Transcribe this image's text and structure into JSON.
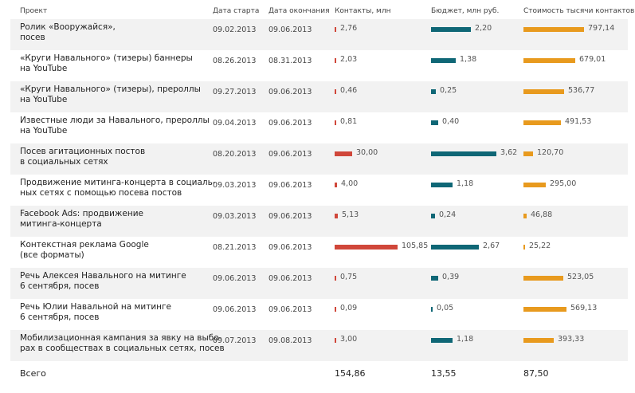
{
  "header": {
    "project": "Проект",
    "start": "Дата старта",
    "end": "Дата окончания",
    "contacts": "Контакты, млн",
    "budget": "Бюджет, млн руб.",
    "cost": "Стоимость тысячи контактов, руб.."
  },
  "colors": {
    "contacts": "#d0473a",
    "budget": "#0f6776",
    "cost": "#e89a1e",
    "shade": "#f2f2f2"
  },
  "rows": [
    {
      "line1": "Ролик «Вооружайся»,",
      "line2": "посев",
      "start": "09.02.2013",
      "end": "09.06.2013",
      "contacts": "2,76",
      "budget": "2,20",
      "cost": "797,14"
    },
    {
      "line1": "«Круги Навального» (тизеры) баннеры",
      "line2": "на YouTube",
      "start": "08.26.2013",
      "end": "08.31.2013",
      "contacts": "2,03",
      "budget": "1,38",
      "cost": "679,01"
    },
    {
      "line1": "«Круги Навального» (тизеры), прероллы",
      "line2": "на YouTube",
      "start": "09.27.2013",
      "end": "09.06.2013",
      "contacts": "0,46",
      "budget": "0,25",
      "cost": "536,77"
    },
    {
      "line1": "Известные люди за Навального, прероллы",
      "line2": "на YouTube",
      "start": "09.04.2013",
      "end": "09.06.2013",
      "contacts": "0,81",
      "budget": "0,40",
      "cost": "491,53"
    },
    {
      "line1": "Посев агитационных постов",
      "line2": "в социальных сетях",
      "start": "08.20.2013",
      "end": "09.06.2013",
      "contacts": "30,00",
      "budget": "3,62",
      "cost": "120,70"
    },
    {
      "line1": "Продвижение митинга-концерта в социаль-",
      "line2": "ных сетях с помощью посева постов",
      "start": "09.03.2013",
      "end": "09.06.2013",
      "contacts": "4,00",
      "budget": "1,18",
      "cost": "295,00"
    },
    {
      "line1": "Facebook Ads: продвижение",
      "line2": "митинга-концерта",
      "start": "09.03.2013",
      "end": "09.06.2013",
      "contacts": "5,13",
      "budget": "0,24",
      "cost": "46,88"
    },
    {
      "line1": "Контекстная реклама Google",
      "line2": "(все форматы)",
      "start": "08.21.2013",
      "end": "09.06.2013",
      "contacts": "105,85",
      "budget": "2,67",
      "cost": "25,22"
    },
    {
      "line1": "Речь Алексея Навального на митинге",
      "line2": "6 сентября, посев",
      "start": "09.06.2013",
      "end": "09.06.2013",
      "contacts": "0,75",
      "budget": "0,39",
      "cost": "523,05"
    },
    {
      "line1": "Речь Юлии Навальной на митинге",
      "line2": "6 сентября, посев",
      "start": "09.06.2013",
      "end": "09.06.2013",
      "contacts": "0,09",
      "budget": "0,05",
      "cost": "569,13"
    },
    {
      "line1": "Мобилизационная кампания за явку на выбо-",
      "line2": "рах в сообществах в социальных сетях, посев",
      "start": "09.07.2013",
      "end": "09.08.2013",
      "contacts": "3,00",
      "budget": "1,18",
      "cost": "393,33"
    }
  ],
  "totals": {
    "label": "Всего",
    "contacts": "154,86",
    "budget": "13,55",
    "cost": "87,50"
  }
}
